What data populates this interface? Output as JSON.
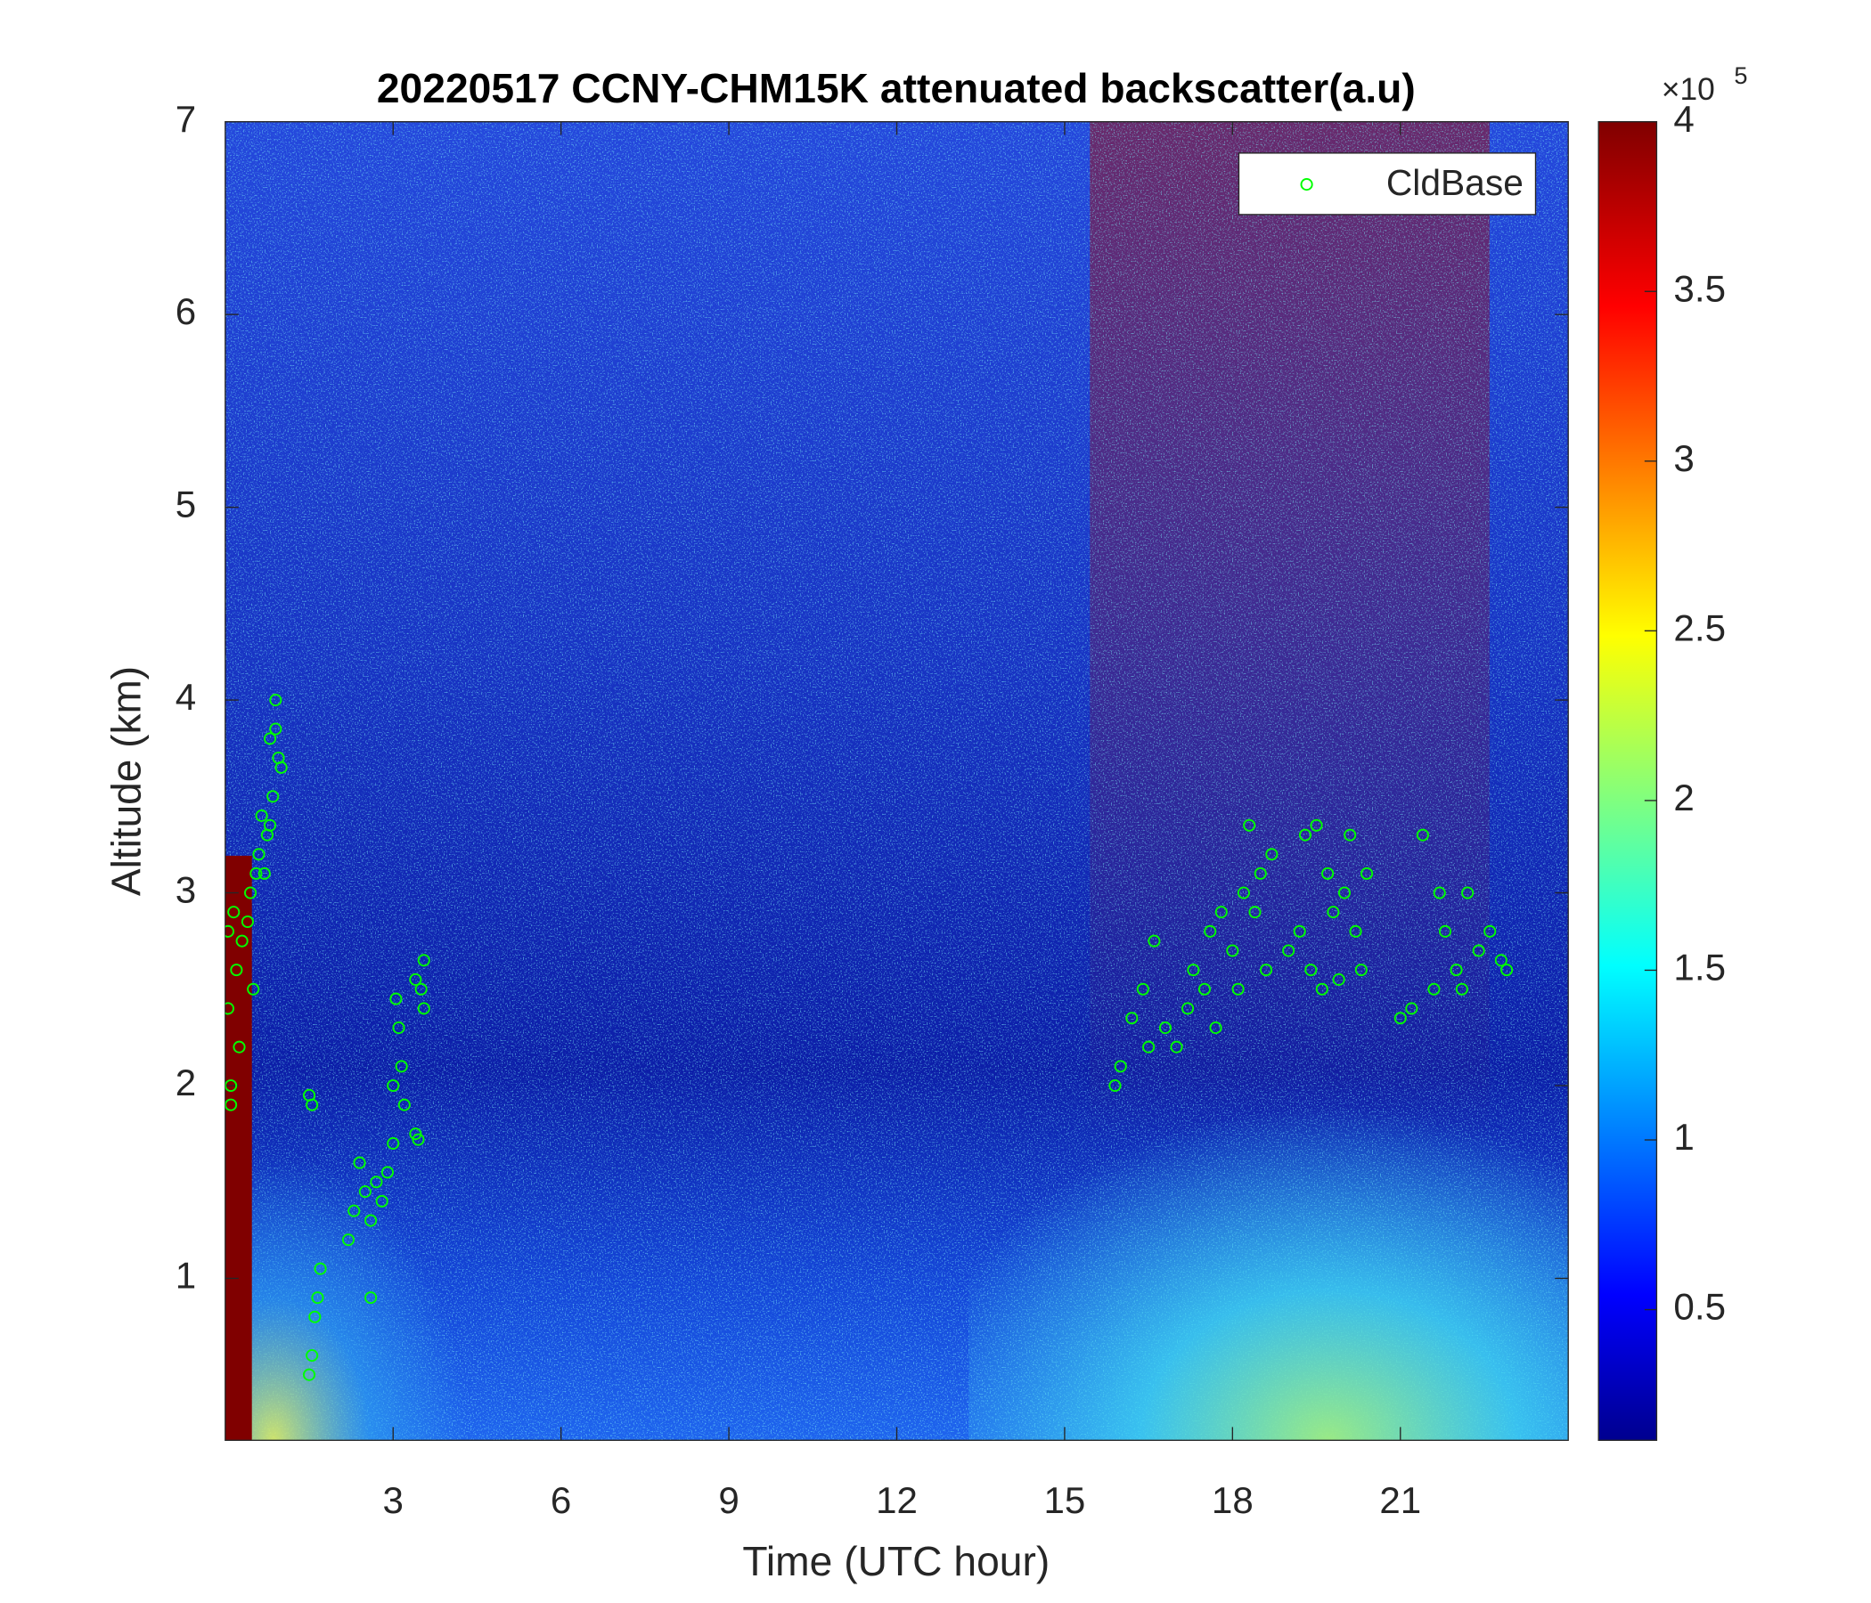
{
  "chart_data": {
    "type": "scatter",
    "title": "20220517 CCNY-CHM15K attenuated backscatter(a.u)",
    "xlabel": "Time (UTC hour)",
    "ylabel": "Altitude (km)",
    "xlim": [
      0,
      24
    ],
    "xticks": [
      3,
      6,
      9,
      12,
      15,
      18,
      21
    ],
    "ylim": [
      0.16,
      7
    ],
    "yticks": [
      1,
      2,
      3,
      4,
      5,
      6,
      7
    ],
    "legend": "upper right",
    "series": [
      {
        "name": "CldBase",
        "color": "#00ff00",
        "x": [
          0.05,
          0.05,
          0.1,
          0.1,
          0.15,
          0.2,
          0.25,
          0.3,
          0.4,
          0.45,
          0.5,
          0.55,
          0.6,
          0.65,
          0.7,
          0.75,
          0.8,
          0.85,
          0.8,
          0.9,
          0.9,
          0.95,
          1.0,
          1.5,
          1.55,
          1.55,
          1.6,
          1.65,
          1.7,
          1.5,
          2.2,
          2.3,
          2.4,
          2.5,
          2.6,
          2.6,
          2.7,
          2.8,
          2.9,
          3.0,
          3.0,
          3.05,
          3.1,
          3.15,
          3.2,
          3.4,
          3.45,
          3.4,
          3.5,
          3.55,
          3.55,
          15.9,
          16.0,
          16.2,
          16.4,
          16.5,
          16.6,
          16.8,
          17.0,
          17.2,
          17.3,
          17.5,
          17.6,
          17.7,
          17.8,
          18.0,
          18.1,
          18.2,
          18.3,
          18.4,
          18.5,
          18.6,
          18.7,
          19.0,
          19.2,
          19.3,
          19.4,
          19.5,
          19.6,
          19.7,
          19.8,
          19.9,
          20.0,
          20.1,
          20.2,
          20.3,
          20.4,
          21.0,
          21.2,
          21.4,
          21.6,
          21.7,
          21.8,
          22.0,
          22.1,
          22.2,
          22.4,
          22.6,
          22.8,
          22.9
        ],
        "values": [
          2.8,
          2.4,
          2.0,
          1.9,
          2.9,
          2.6,
          2.2,
          2.75,
          2.85,
          3.0,
          2.5,
          3.1,
          3.2,
          3.4,
          3.1,
          3.3,
          3.35,
          3.5,
          3.8,
          3.85,
          4.0,
          3.7,
          3.65,
          1.95,
          1.9,
          0.6,
          0.8,
          0.9,
          1.05,
          0.5,
          1.2,
          1.35,
          1.6,
          1.45,
          1.3,
          0.9,
          1.5,
          1.4,
          1.55,
          1.7,
          2.0,
          2.45,
          2.3,
          2.1,
          1.9,
          1.75,
          1.72,
          2.55,
          2.5,
          2.65,
          2.4,
          2.0,
          2.1,
          2.35,
          2.5,
          2.2,
          2.75,
          2.3,
          2.2,
          2.4,
          2.6,
          2.5,
          2.8,
          2.3,
          2.9,
          2.7,
          2.5,
          3.0,
          3.35,
          2.9,
          3.1,
          2.6,
          3.2,
          2.7,
          2.8,
          3.3,
          2.6,
          3.35,
          2.5,
          3.1,
          2.9,
          2.55,
          3.0,
          3.3,
          2.8,
          2.6,
          3.1,
          2.35,
          2.4,
          3.3,
          2.5,
          3.0,
          2.8,
          2.6,
          2.5,
          3.0,
          2.7,
          2.8,
          2.65,
          2.6
        ]
      }
    ],
    "colorbar": {
      "clim": [
        0.115,
        4
      ],
      "ticks": [
        0.5,
        1,
        1.5,
        2,
        2.5,
        3,
        3.5,
        4
      ],
      "multiplier": "×10",
      "exponent": "5"
    }
  }
}
